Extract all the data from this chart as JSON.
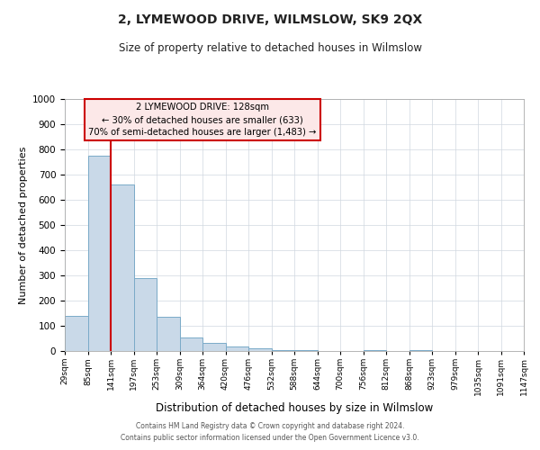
{
  "title": "2, LYMEWOOD DRIVE, WILMSLOW, SK9 2QX",
  "subtitle": "Size of property relative to detached houses in Wilmslow",
  "xlabel": "Distribution of detached houses by size in Wilmslow",
  "ylabel": "Number of detached properties",
  "bar_values": [
    140,
    775,
    660,
    290,
    135,
    55,
    32,
    18,
    12,
    5,
    2,
    0,
    0,
    5,
    0,
    2,
    0,
    0,
    0,
    0
  ],
  "bin_labels": [
    "29sqm",
    "85sqm",
    "141sqm",
    "197sqm",
    "253sqm",
    "309sqm",
    "364sqm",
    "420sqm",
    "476sqm",
    "532sqm",
    "588sqm",
    "644sqm",
    "700sqm",
    "756sqm",
    "812sqm",
    "868sqm",
    "923sqm",
    "979sqm",
    "1035sqm",
    "1091sqm",
    "1147sqm"
  ],
  "bar_color": "#c9d9e8",
  "bar_edge_color": "#7aaac8",
  "vline_x": 2,
  "vline_color": "#cc0000",
  "ylim": [
    0,
    1000
  ],
  "yticks": [
    0,
    100,
    200,
    300,
    400,
    500,
    600,
    700,
    800,
    900,
    1000
  ],
  "annotation_title": "2 LYMEWOOD DRIVE: 128sqm",
  "annotation_line1": "← 30% of detached houses are smaller (633)",
  "annotation_line2": "70% of semi-detached houses are larger (1,483) →",
  "annotation_box_facecolor": "#fce8e8",
  "annotation_border_color": "#cc0000",
  "footer_line1": "Contains HM Land Registry data © Crown copyright and database right 2024.",
  "footer_line2": "Contains public sector information licensed under the Open Government Licence v3.0.",
  "background_color": "#ffffff",
  "grid_color": "#d0d8e0"
}
